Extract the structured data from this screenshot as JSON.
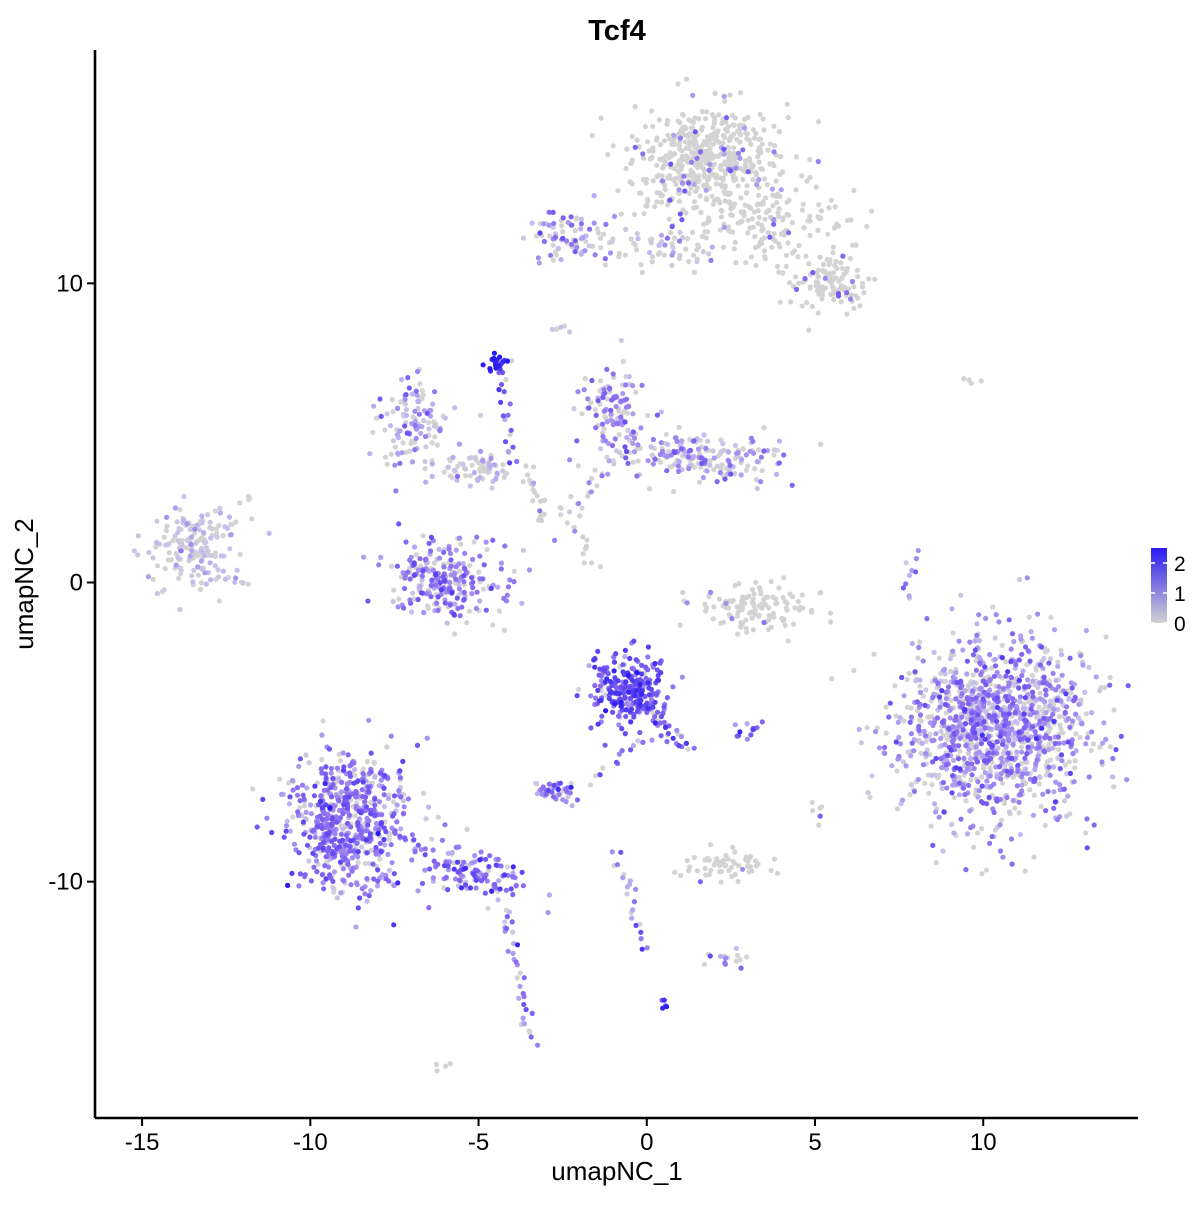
{
  "chart_data": {
    "type": "scatter",
    "title": "Tcf4",
    "xlabel": "umapNC_1",
    "ylabel": "umapNC_2",
    "xlim": [
      -16.4,
      14.6
    ],
    "ylim": [
      -17.9,
      17.8
    ],
    "x_ticks": [
      -15,
      -10,
      -5,
      0,
      5,
      10
    ],
    "x_tick_labels": [
      "-15",
      "-10",
      "-5",
      "0",
      "5",
      "10"
    ],
    "y_ticks": [
      -10,
      0,
      10
    ],
    "y_tick_labels": [
      "-10",
      "0",
      "10"
    ],
    "grid": false,
    "legend": {
      "placement": "right",
      "kind": "colorbar",
      "range": [
        0,
        2.5
      ],
      "ticks": [
        0,
        1,
        2
      ],
      "tick_labels": [
        "0",
        "1",
        "2"
      ],
      "low_color": "#d3d3d3",
      "high_color": "#2a1af2"
    },
    "point_colors": {
      "zero": "#d3d3d3",
      "low": "#c4bcf0",
      "mid": "#8d6df0",
      "high": "#2a1af2"
    },
    "clusters": [
      {
        "center": [
          1.8,
          14.2
        ],
        "spread": [
          1.1,
          0.9
        ],
        "count": 520,
        "expression": 0.05
      },
      {
        "center": [
          3.5,
          12.0
        ],
        "spread": [
          1.3,
          0.7
        ],
        "count": 160,
        "expression": 0.05
      },
      {
        "center": [
          5.3,
          10.0
        ],
        "spread": [
          0.6,
          0.5
        ],
        "count": 110,
        "expression": 0.05
      },
      {
        "center": [
          -2.2,
          11.6
        ],
        "spread": [
          0.6,
          0.5
        ],
        "count": 70,
        "expression": 0.9
      },
      {
        "center": [
          0.5,
          11.2
        ],
        "spread": [
          1.2,
          0.3
        ],
        "count": 60,
        "expression": 0.15
      },
      {
        "center": [
          -6.9,
          5.2
        ],
        "spread": [
          0.5,
          0.8
        ],
        "count": 120,
        "expression": 0.7
      },
      {
        "center": [
          -1.0,
          5.8
        ],
        "spread": [
          0.5,
          0.6
        ],
        "count": 110,
        "expression": 0.8
      },
      {
        "center": [
          1.6,
          4.2
        ],
        "spread": [
          1.3,
          0.4
        ],
        "count": 200,
        "expression": 0.7
      },
      {
        "center": [
          -5.0,
          3.8
        ],
        "spread": [
          0.6,
          0.3
        ],
        "count": 60,
        "expression": 0.3
      },
      {
        "center": [
          -4.4,
          7.4
        ],
        "spread": [
          0.2,
          0.15
        ],
        "count": 20,
        "expression": 2.4
      },
      {
        "center": [
          -13.5,
          1.2
        ],
        "spread": [
          0.7,
          0.7
        ],
        "count": 170,
        "expression": 0.25
      },
      {
        "center": [
          -6.0,
          0.1
        ],
        "spread": [
          0.9,
          0.6
        ],
        "count": 250,
        "expression": 1.0
      },
      {
        "center": [
          3.3,
          -0.8
        ],
        "spread": [
          1.0,
          0.4
        ],
        "count": 120,
        "expression": 0.1
      },
      {
        "center": [
          10.3,
          -4.8
        ],
        "spread": [
          1.4,
          1.5
        ],
        "count": 1300,
        "expression": 0.9
      },
      {
        "center": [
          -0.5,
          -3.6
        ],
        "spread": [
          0.55,
          0.6
        ],
        "count": 260,
        "expression": 1.5
      },
      {
        "center": [
          -2.7,
          -7.0
        ],
        "spread": [
          0.3,
          0.2
        ],
        "count": 40,
        "expression": 1.0
      },
      {
        "center": [
          -8.8,
          -8.0
        ],
        "spread": [
          0.85,
          1.2
        ],
        "count": 620,
        "expression": 1.1
      },
      {
        "center": [
          -5.1,
          -9.6
        ],
        "spread": [
          0.8,
          0.5
        ],
        "count": 90,
        "expression": 1.2
      },
      {
        "center": [
          2.4,
          -9.5
        ],
        "spread": [
          0.6,
          0.25
        ],
        "count": 60,
        "expression": 0.05
      },
      {
        "center": [
          2.4,
          -12.6
        ],
        "spread": [
          0.3,
          0.2
        ],
        "count": 15,
        "expression": 0.8
      }
    ],
    "trails": [
      {
        "from": [
          -4.4,
          7.2
        ],
        "to": [
          -4.0,
          4.0
        ],
        "count": 18,
        "expression": 1.5
      },
      {
        "from": [
          -3.5,
          3.8
        ],
        "to": [
          -3.0,
          2.0
        ],
        "count": 20,
        "expression": 0.1
      },
      {
        "from": [
          -2.5,
          2.6
        ],
        "to": [
          -1.5,
          0.5
        ],
        "count": 15,
        "expression": 0.1
      },
      {
        "from": [
          -2.3,
          2.3
        ],
        "to": [
          -1.0,
          4.3
        ],
        "count": 18,
        "expression": 0.4
      },
      {
        "from": [
          -7.6,
          -8.4
        ],
        "to": [
          -4.0,
          -10.4
        ],
        "count": 45,
        "expression": 1.2
      },
      {
        "from": [
          -4.2,
          -10.6
        ],
        "to": [
          -3.5,
          -15.5
        ],
        "count": 35,
        "expression": 0.9
      },
      {
        "from": [
          -0.8,
          -9.0
        ],
        "to": [
          0.0,
          -12.2
        ],
        "count": 22,
        "expression": 1.1
      },
      {
        "from": [
          0.0,
          -4.0
        ],
        "to": [
          1.2,
          -5.6
        ],
        "count": 30,
        "expression": 1.3
      },
      {
        "from": [
          0.2,
          -5.0
        ],
        "to": [
          -1.6,
          -6.6
        ],
        "count": 15,
        "expression": 1.1
      },
      {
        "from": [
          8.0,
          0.9
        ],
        "to": [
          7.8,
          -0.5
        ],
        "count": 10,
        "expression": 0.9
      },
      {
        "from": [
          -2.4,
          8.7
        ],
        "to": [
          -2.6,
          8.4
        ],
        "count": 6,
        "expression": 0.2
      },
      {
        "from": [
          2.6,
          -5.0
        ],
        "to": [
          3.3,
          -4.9
        ],
        "count": 12,
        "expression": 1.5
      },
      {
        "from": [
          -11.8,
          2.8
        ],
        "to": [
          -12.0,
          2.4
        ],
        "count": 5,
        "expression": 0.1
      },
      {
        "from": [
          -6.2,
          -16.1
        ],
        "to": [
          -6.0,
          -15.9
        ],
        "count": 4,
        "expression": 0.1
      },
      {
        "from": [
          0.5,
          -14.0
        ],
        "to": [
          0.6,
          -14.1
        ],
        "count": 5,
        "expression": 2.0
      },
      {
        "from": [
          5.0,
          -7.3
        ],
        "to": [
          5.1,
          -8.0
        ],
        "count": 6,
        "expression": 0.1
      },
      {
        "from": [
          9.4,
          6.7
        ],
        "to": [
          9.9,
          6.8
        ],
        "count": 4,
        "expression": 0.1
      },
      {
        "from": [
          -12.4,
          0.3
        ],
        "to": [
          -12.0,
          -0.2
        ],
        "count": 6,
        "expression": 0.5
      }
    ]
  }
}
